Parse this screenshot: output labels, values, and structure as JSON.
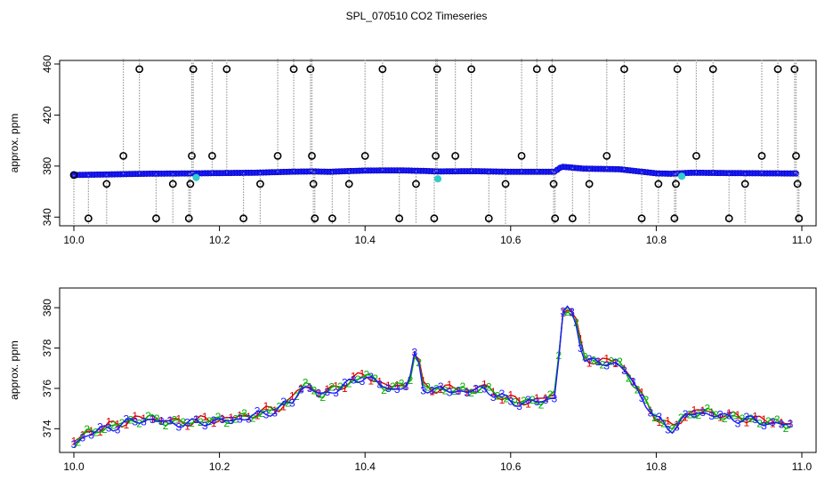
{
  "title": "SPL_070510  CO2 Timeseries",
  "chart_data": [
    {
      "type": "scatter",
      "panel": "top",
      "title": "",
      "xlabel": "",
      "ylabel": "approx. ppm",
      "xlim": [
        10.0,
        11.0
      ],
      "ylim": [
        336,
        460
      ],
      "xticks": [
        10.0,
        10.2,
        10.4,
        10.6,
        10.8,
        11.0
      ],
      "xtick_labels": [
        "10.0",
        "10.2",
        "10.4",
        "10.6",
        "10.8",
        "11.0"
      ],
      "yticks": [
        340,
        380,
        420,
        460
      ],
      "ytick_labels": [
        "340",
        "380",
        "420",
        "460"
      ],
      "grid": false,
      "colors": {
        "baseline": "#1a1aff",
        "outlier": "#000000",
        "spike": "#999999",
        "flag": "#33cccc",
        "alt": "#cc0000"
      },
      "series": [
        {
          "name": "co2_raw",
          "baseline": [
            [
              10.0,
              373
            ],
            [
              10.05,
              373.5
            ],
            [
              10.1,
              374
            ],
            [
              10.15,
              374.2
            ],
            [
              10.2,
              374.5
            ],
            [
              10.25,
              374.8
            ],
            [
              10.3,
              375.6
            ],
            [
              10.33,
              375.8
            ],
            [
              10.35,
              375.5
            ],
            [
              10.4,
              376.5
            ],
            [
              10.45,
              376.6
            ],
            [
              10.48,
              376.2
            ],
            [
              10.5,
              375.8
            ],
            [
              10.55,
              376.0
            ],
            [
              10.6,
              375.5
            ],
            [
              10.66,
              375.5
            ],
            [
              10.67,
              379.5
            ],
            [
              10.7,
              378.0
            ],
            [
              10.75,
              377.5
            ],
            [
              10.8,
              374.3
            ],
            [
              10.82,
              374.0
            ],
            [
              10.85,
              374.8
            ],
            [
              10.9,
              374.5
            ],
            [
              10.99,
              374.2
            ]
          ],
          "outliers": [
            [
              10.0,
              373
            ],
            [
              10.02,
              339
            ],
            [
              10.045,
              366
            ],
            [
              10.068,
              388
            ],
            [
              10.09,
              456
            ],
            [
              10.113,
              339
            ],
            [
              10.136,
              366
            ],
            [
              10.158,
              339
            ],
            [
              10.16,
              366
            ],
            [
              10.162,
              388
            ],
            [
              10.164,
              456
            ],
            [
              10.19,
              388
            ],
            [
              10.21,
              456
            ],
            [
              10.233,
              339
            ],
            [
              10.256,
              366
            ],
            [
              10.28,
              388
            ],
            [
              10.302,
              456
            ],
            [
              10.325,
              456
            ],
            [
              10.327,
              388
            ],
            [
              10.329,
              366
            ],
            [
              10.331,
              339
            ],
            [
              10.355,
              339
            ],
            [
              10.378,
              366
            ],
            [
              10.4,
              388
            ],
            [
              10.424,
              456
            ],
            [
              10.447,
              339
            ],
            [
              10.47,
              366
            ],
            [
              10.495,
              339
            ],
            [
              10.497,
              388
            ],
            [
              10.499,
              456
            ],
            [
              10.524,
              388
            ],
            [
              10.546,
              456
            ],
            [
              10.57,
              339
            ],
            [
              10.593,
              366
            ],
            [
              10.615,
              388
            ],
            [
              10.636,
              456
            ],
            [
              10.657,
              456
            ],
            [
              10.659,
              366
            ],
            [
              10.661,
              339
            ],
            [
              10.685,
              339
            ],
            [
              10.708,
              366
            ],
            [
              10.732,
              388
            ],
            [
              10.756,
              456
            ],
            [
              10.78,
              339
            ],
            [
              10.803,
              366
            ],
            [
              10.825,
              339
            ],
            [
              10.827,
              366
            ],
            [
              10.829,
              456
            ],
            [
              10.855,
              388
            ],
            [
              10.878,
              456
            ],
            [
              10.9,
              339
            ],
            [
              10.922,
              366
            ],
            [
              10.945,
              388
            ],
            [
              10.967,
              456
            ],
            [
              10.99,
              456
            ],
            [
              10.992,
              388
            ],
            [
              10.994,
              366
            ],
            [
              10.996,
              339
            ]
          ],
          "flags": [
            [
              10.168,
              371
            ],
            [
              10.5,
              370
            ],
            [
              10.835,
              372
            ]
          ]
        }
      ]
    },
    {
      "type": "line",
      "panel": "bottom",
      "title": "",
      "xlabel": "",
      "ylabel": "approx. ppm",
      "xlim": [
        10.0,
        11.0
      ],
      "ylim": [
        373,
        380.8
      ],
      "xticks": [
        10.0,
        10.2,
        10.4,
        10.6,
        10.8,
        11.0
      ],
      "xtick_labels": [
        "10.0",
        "10.2",
        "10.4",
        "10.6",
        "10.8",
        "11.0"
      ],
      "yticks": [
        374,
        376,
        378,
        380
      ],
      "ytick_labels": [
        "374",
        "376",
        "378",
        "380"
      ],
      "grid": false,
      "series": [
        {
          "name": "1",
          "color": "#dd0000",
          "label": "1",
          "offset": 0.15
        },
        {
          "name": "2",
          "color": "#00b000",
          "label": "2",
          "offset": 0.0
        },
        {
          "name": "3",
          "color": "#1a1aff",
          "label": "3",
          "offset": -0.15
        }
      ],
      "x": [
        10.0,
        10.02,
        10.04,
        10.06,
        10.08,
        10.1,
        10.12,
        10.14,
        10.16,
        10.18,
        10.2,
        10.22,
        10.24,
        10.26,
        10.28,
        10.3,
        10.31,
        10.32,
        10.34,
        10.36,
        10.38,
        10.4,
        10.42,
        10.44,
        10.46,
        10.47,
        10.48,
        10.5,
        10.52,
        10.54,
        10.56,
        10.58,
        10.6,
        10.62,
        10.64,
        10.66,
        10.665,
        10.67,
        10.68,
        10.69,
        10.7,
        10.72,
        10.74,
        10.76,
        10.78,
        10.8,
        10.82,
        10.84,
        10.86,
        10.88,
        10.9,
        10.92,
        10.94,
        10.96,
        10.99
      ],
      "values": [
        373.3,
        373.8,
        374.0,
        374.2,
        374.4,
        374.5,
        374.4,
        374.3,
        374.3,
        374.4,
        374.4,
        374.5,
        374.6,
        374.8,
        375.0,
        375.4,
        376.0,
        376.1,
        375.7,
        376.0,
        376.3,
        376.7,
        376.2,
        376.0,
        376.2,
        378.0,
        376.1,
        375.9,
        376.0,
        375.8,
        376.1,
        375.7,
        375.4,
        375.3,
        375.4,
        375.6,
        377.0,
        379.8,
        380.0,
        379.2,
        377.6,
        377.2,
        377.4,
        376.8,
        375.6,
        374.5,
        374.0,
        374.6,
        374.9,
        374.7,
        374.6,
        374.5,
        374.4,
        374.3,
        374.2
      ]
    }
  ]
}
